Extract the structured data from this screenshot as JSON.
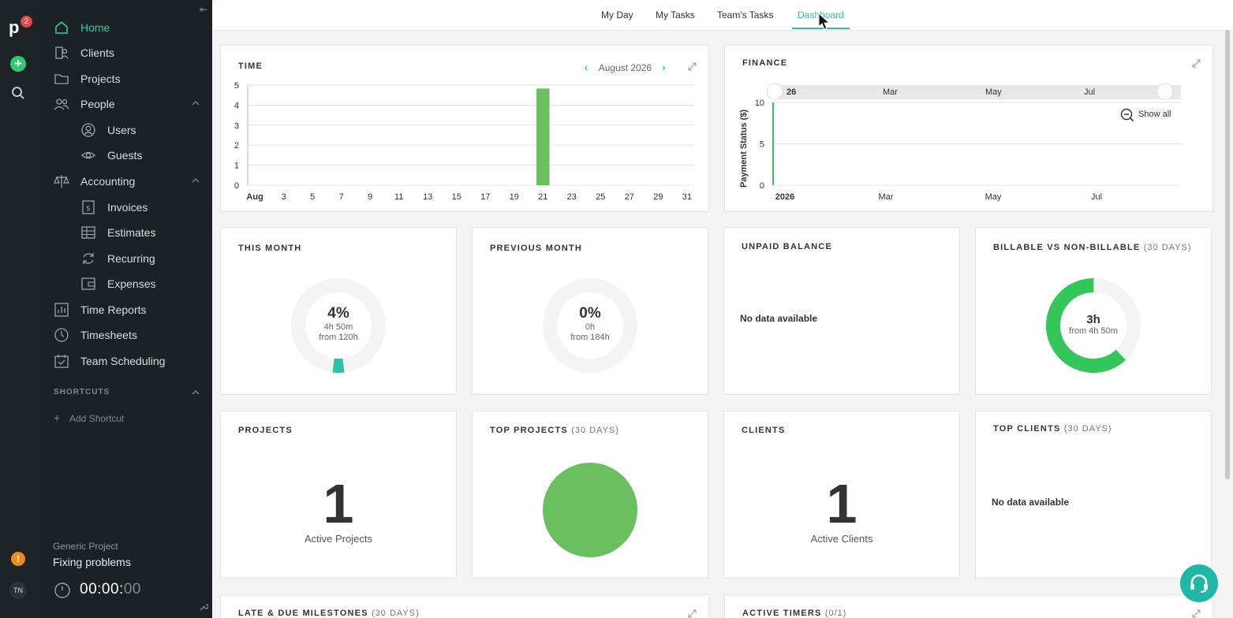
{
  "rail": {
    "notification_count": "2",
    "user_initials": "TN"
  },
  "sidebar": {
    "items": [
      {
        "label": "Home",
        "icon": "home-icon"
      },
      {
        "label": "Clients",
        "icon": "clients-icon"
      },
      {
        "label": "Projects",
        "icon": "folder-icon"
      },
      {
        "label": "People",
        "icon": "people-icon"
      },
      {
        "label": "Users",
        "icon": "user-icon"
      },
      {
        "label": "Guests",
        "icon": "eye-icon"
      },
      {
        "label": "Accounting",
        "icon": "scales-icon"
      },
      {
        "label": "Invoices",
        "icon": "invoice-icon"
      },
      {
        "label": "Estimates",
        "icon": "table-icon"
      },
      {
        "label": "Recurring",
        "icon": "recurring-icon"
      },
      {
        "label": "Expenses",
        "icon": "wallet-icon"
      },
      {
        "label": "Time Reports",
        "icon": "chart-icon"
      },
      {
        "label": "Timesheets",
        "icon": "clock-icon"
      },
      {
        "label": "Team Scheduling",
        "icon": "calendar-check-icon"
      }
    ],
    "shortcuts_title": "SHORTCUTS",
    "add_shortcut": "Add Shortcut",
    "timer": {
      "project": "Generic Project",
      "task": "Fixing problems",
      "time_main": "00:00:",
      "time_seconds": "00"
    }
  },
  "topbar": {
    "tabs": [
      "My Day",
      "My Tasks",
      "Team's Tasks",
      "Dashboard"
    ],
    "active_tab": "Dashboard"
  },
  "time_card": {
    "title": "TIME",
    "month": "August 2026"
  },
  "finance_card": {
    "title": "FINANCE",
    "show_all": "Show all",
    "navigator_labels": [
      "26",
      "Mar",
      "May",
      "Jul"
    ]
  },
  "this_month": {
    "title": "THIS MONTH",
    "percent": "4%",
    "hours": "4h 50m",
    "from": "from 120h"
  },
  "previous_month": {
    "title": "PREVIOUS MONTH",
    "percent": "0%",
    "hours": "0h",
    "from": "from 184h"
  },
  "unpaid_balance": {
    "title": "UNPAID BALANCE",
    "empty": "No data available"
  },
  "billable": {
    "title": "BILLABLE VS NON-BILLABLE",
    "period": "(30 DAYS)",
    "value": "3h",
    "from": "from 4h 50m"
  },
  "projects": {
    "title": "PROJECTS",
    "count": "1",
    "caption": "Active Projects"
  },
  "top_projects": {
    "title": "TOP PROJECTS",
    "period": "(30 DAYS)"
  },
  "clients": {
    "title": "CLIENTS",
    "count": "1",
    "caption": "Active Clients"
  },
  "top_clients": {
    "title": "TOP CLIENTS",
    "period": "(30 DAYS)",
    "empty": "No data available"
  },
  "milestones": {
    "title": "LATE & DUE MILESTONES",
    "period": "(30 DAYS)"
  },
  "active_timers": {
    "title": "ACTIVE TIMERS",
    "count": "(0/1)"
  },
  "colors": {
    "accent": "#2ebfa5",
    "green": "#6abf5e",
    "bright_green": "#33c65a",
    "sidebar_bg": "#1b2226"
  },
  "chart_data": [
    {
      "type": "bar",
      "title": "TIME",
      "x": [
        "Aug",
        "2",
        "3",
        "4",
        "5",
        "6",
        "7",
        "8",
        "9",
        "10",
        "11",
        "12",
        "13",
        "14",
        "15",
        "16",
        "17",
        "18",
        "19",
        "20",
        "21",
        "22",
        "23",
        "24",
        "25",
        "26",
        "27",
        "28",
        "29",
        "30",
        "31"
      ],
      "x_tick_labels": [
        "Aug",
        "3",
        "5",
        "7",
        "9",
        "11",
        "13",
        "15",
        "17",
        "19",
        "21",
        "23",
        "25",
        "27",
        "29",
        "31"
      ],
      "values": [
        0,
        0,
        0,
        0,
        0,
        0,
        0,
        0,
        0,
        0,
        0,
        0,
        0,
        0,
        0,
        0,
        0,
        0,
        0,
        0,
        4.83,
        0,
        0,
        0,
        0,
        0,
        0,
        0,
        0,
        0,
        0
      ],
      "ylim": [
        0,
        5
      ],
      "y_ticks": [
        "0",
        "1",
        "2",
        "3",
        "4",
        "5"
      ],
      "grid": true
    },
    {
      "type": "line",
      "title": "FINANCE",
      "ylabel": "Payment Status ($)",
      "x_tick_labels": [
        "2026",
        "Mar",
        "May",
        "Jul"
      ],
      "y_ticks": [
        "0",
        "5",
        "10"
      ],
      "ylim": [
        0,
        10
      ],
      "series": [
        {
          "x": [
            "2026",
            "2026"
          ],
          "values": [
            0,
            10
          ]
        }
      ]
    },
    {
      "type": "pie",
      "title": "THIS MONTH",
      "values": [
        4
      ],
      "total": 100
    },
    {
      "type": "pie",
      "title": "PREVIOUS MONTH",
      "values": [
        0
      ],
      "total": 100
    },
    {
      "type": "pie",
      "title": "BILLABLE VS NON-BILLABLE",
      "values": [
        3,
        1.83
      ]
    },
    {
      "type": "pie",
      "title": "TOP PROJECTS",
      "values": [
        100
      ]
    }
  ]
}
